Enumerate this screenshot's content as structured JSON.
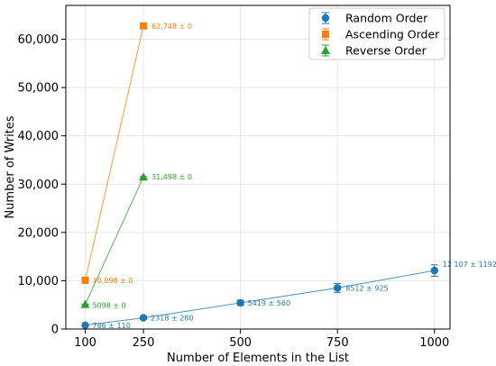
{
  "chart_data": {
    "type": "line",
    "title": "",
    "xlabel": "Number of Elements in the List",
    "ylabel": "Number of Writes",
    "x_ticks": [
      100,
      250,
      500,
      750,
      1000
    ],
    "y_ticks": [
      0,
      10000,
      20000,
      30000,
      40000,
      50000,
      60000
    ],
    "y_tick_labels": [
      "0",
      "10,000",
      "20,000",
      "30,000",
      "40,000",
      "50,000",
      "60,000"
    ],
    "xlim": [
      50,
      1040
    ],
    "ylim": [
      0,
      67000
    ],
    "grid": true,
    "legend_position": "top-right",
    "series": [
      {
        "name": "Random Order",
        "color": "#1f77b4",
        "marker": "circle",
        "x": [
          100,
          250,
          500,
          750,
          1000
        ],
        "y": [
          786,
          2318,
          5419,
          8512,
          12107
        ],
        "err": [
          110,
          280,
          560,
          925,
          1192
        ],
        "labels": [
          "786 ± 110",
          "2318 ± 280",
          "5419 ± 560",
          "8512 ± 925",
          "12 107 ± 1192"
        ]
      },
      {
        "name": "Ascending Order",
        "color": "#ff7f0e",
        "marker": "square",
        "x": [
          100,
          250
        ],
        "y": [
          10098,
          62748
        ],
        "err": [
          0,
          0
        ],
        "labels": [
          "10,098 ± 0",
          "62,748 ± 0"
        ]
      },
      {
        "name": "Reverse Order",
        "color": "#2ca02c",
        "marker": "triangle",
        "x": [
          100,
          250
        ],
        "y": [
          5098,
          31498
        ],
        "err": [
          0,
          0
        ],
        "labels": [
          "5098 ± 0",
          "31,498 ± 0"
        ]
      }
    ]
  }
}
